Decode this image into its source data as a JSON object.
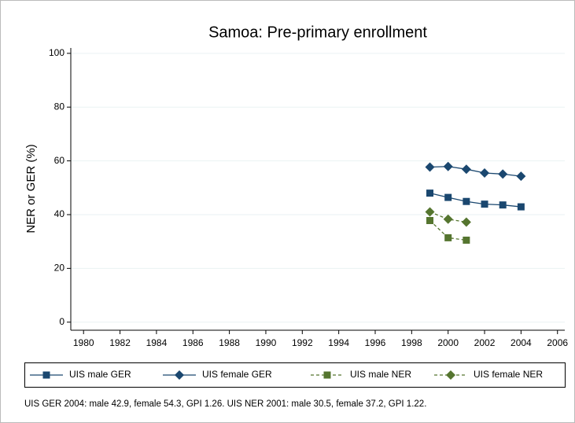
{
  "chart_data": {
    "type": "line",
    "title": "Samoa: Pre-primary enrollment",
    "y_label": "NER or GER (%)",
    "x": [
      1999,
      2000,
      2001,
      2002,
      2003,
      2004
    ],
    "series": [
      {
        "name": "UIS male GER",
        "color": "#1a476f",
        "marker": "square",
        "line_style": "solid",
        "values": [
          48.0,
          46.4,
          44.9,
          43.9,
          43.6,
          42.9
        ]
      },
      {
        "name": "UIS female GER",
        "color": "#1a476f",
        "marker": "diamond",
        "line_style": "solid",
        "values": [
          57.7,
          57.9,
          56.9,
          55.5,
          55.1,
          54.3
        ]
      },
      {
        "name": "UIS male NER",
        "color": "#55752f",
        "marker": "square",
        "line_style": "dashed",
        "values": [
          37.8,
          31.4,
          30.5,
          null,
          null,
          null
        ]
      },
      {
        "name": "UIS female NER",
        "color": "#55752f",
        "marker": "diamond",
        "line_style": "dashed",
        "values": [
          41.0,
          38.3,
          37.2,
          null,
          null,
          null
        ]
      }
    ],
    "xlim": [
      1979.3,
      2006.4
    ],
    "xticks": [
      1980,
      1982,
      1984,
      1986,
      1988,
      1990,
      1992,
      1994,
      1996,
      1998,
      2000,
      2002,
      2004,
      2006
    ],
    "ylim": [
      -3,
      102
    ],
    "yticks": [
      0,
      20,
      40,
      60,
      80,
      100
    ],
    "grid": true,
    "legend": "bottom",
    "note": "UIS GER 2004: male 42.9, female 54.3, GPI 1.26. UIS NER 2001: male 30.5, female 37.2, GPI 1.22."
  }
}
